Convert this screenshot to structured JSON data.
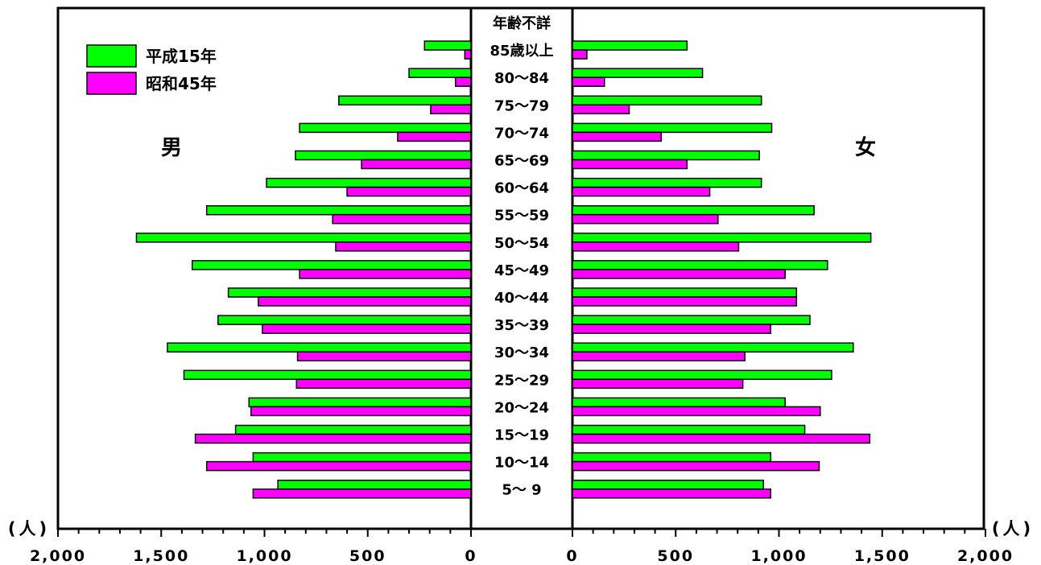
{
  "chart_data": {
    "type": "bar",
    "orientation": "horizontal",
    "subtype": "population-pyramid",
    "unit_label_left": "(人)",
    "unit_label_right": "(人)",
    "side_labels": {
      "male": "男",
      "female": "女"
    },
    "categories": [
      "年齢不詳",
      "85歳以上",
      "80～84",
      "75～79",
      "70～74",
      "65～69",
      "60～64",
      "55～59",
      "50～54",
      "45～49",
      "40～44",
      "35～39",
      "30～34",
      "25～29",
      "20～24",
      "15～19",
      "10～14",
      "5～ 9"
    ],
    "xlim": [
      0,
      2000
    ],
    "x_ticks": [
      0,
      500,
      1000,
      1500,
      2000
    ],
    "x_tick_labels": [
      "0",
      "500",
      "1,000",
      "1,500",
      "2,000"
    ],
    "series": [
      {
        "name": "平成15年",
        "color": "#00ff00",
        "male": [
          0,
          225,
          300,
          640,
          830,
          850,
          990,
          1280,
          1620,
          1350,
          1175,
          1225,
          1470,
          1390,
          1075,
          1140,
          1055,
          935
        ],
        "female": [
          0,
          555,
          630,
          915,
          965,
          905,
          915,
          1170,
          1445,
          1235,
          1085,
          1150,
          1360,
          1255,
          1030,
          1125,
          960,
          925
        ]
      },
      {
        "name": "昭和45年",
        "color": "#ff00ff",
        "male": [
          0,
          30,
          75,
          195,
          355,
          530,
          600,
          670,
          655,
          830,
          1030,
          1010,
          840,
          845,
          1065,
          1335,
          1280,
          1055
        ],
        "female": [
          0,
          70,
          155,
          275,
          430,
          555,
          665,
          705,
          805,
          1030,
          1085,
          960,
          835,
          825,
          1200,
          1440,
          1195,
          960
        ]
      }
    ]
  }
}
